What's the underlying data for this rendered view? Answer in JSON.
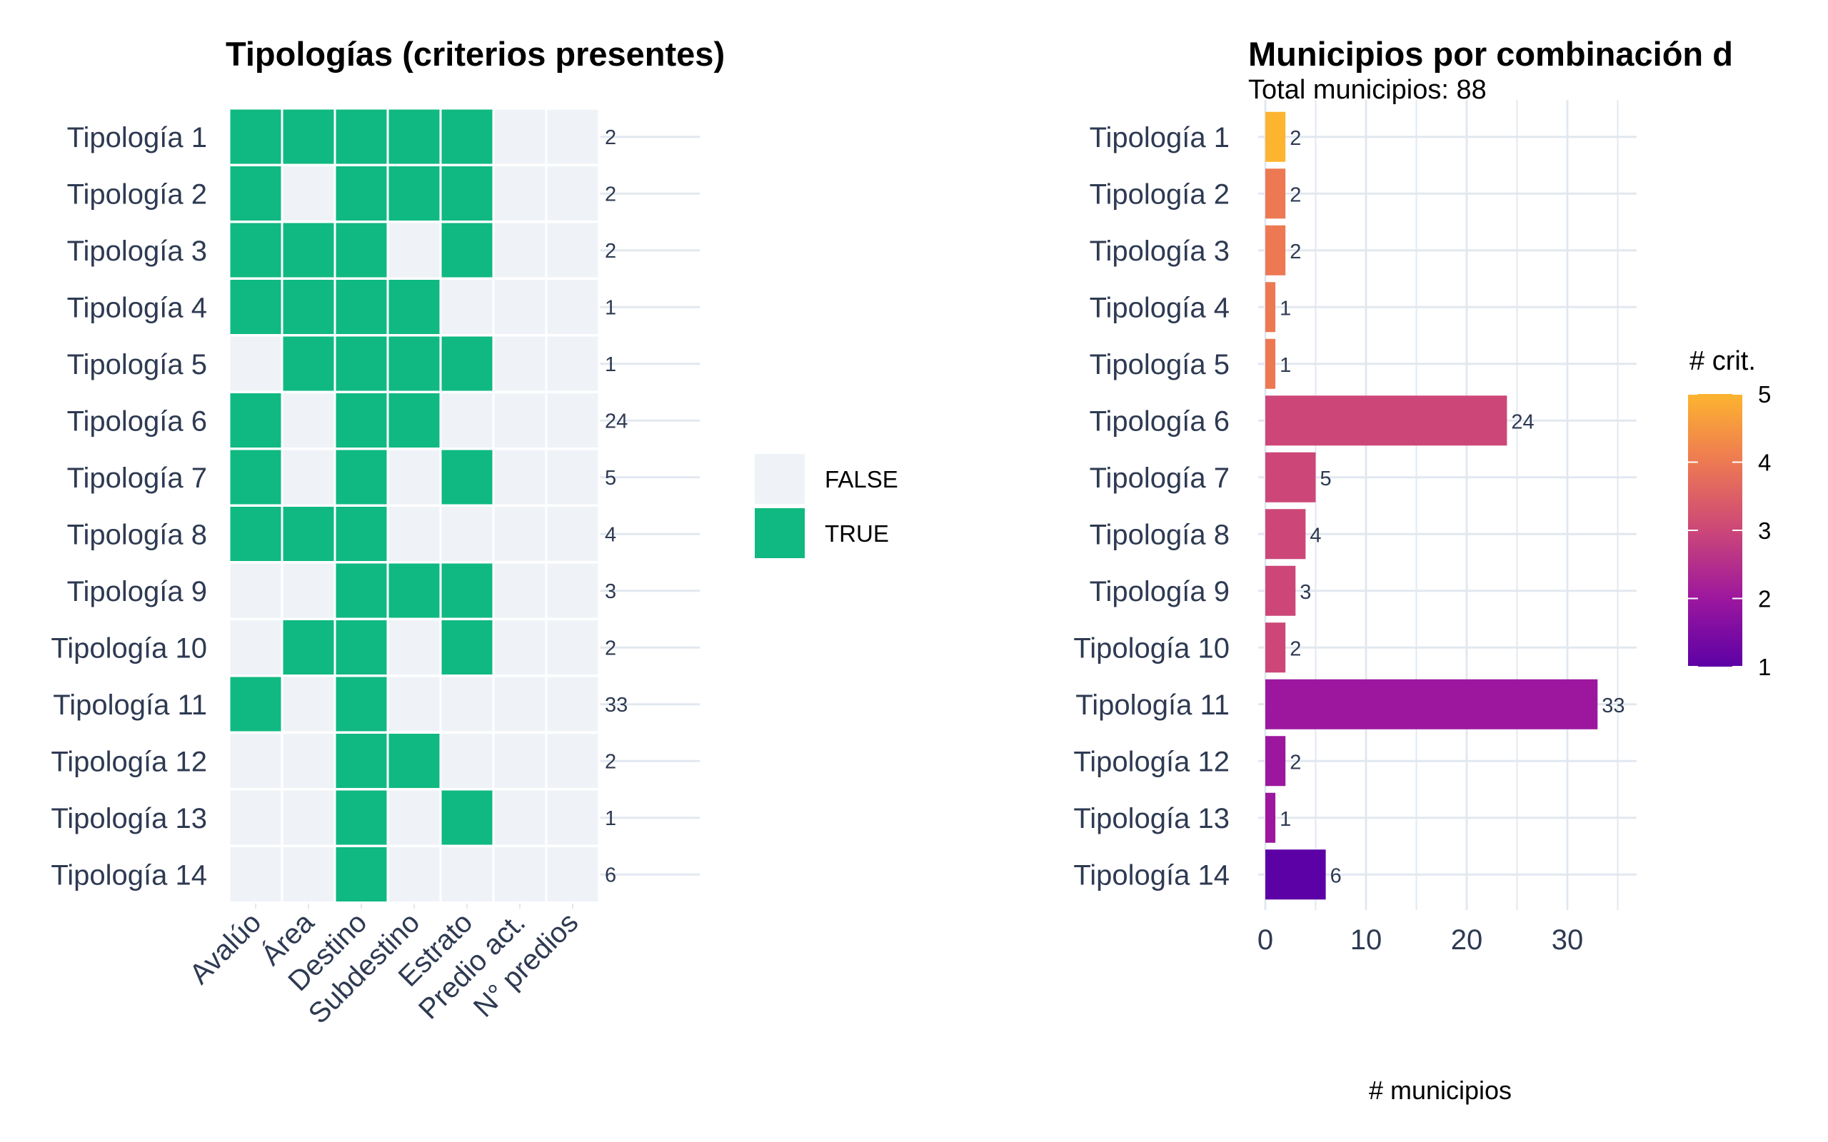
{
  "colors": {
    "true_fill": "#10b981",
    "false_fill": "#eff3f8",
    "grid": "#e2e8f0",
    "text": "#2e3a52"
  },
  "chart_data": [
    {
      "type": "heatmap",
      "title": "Tipologías (criterios presentes)",
      "rows": [
        "Tipología 1",
        "Tipología 2",
        "Tipología 3",
        "Tipología 4",
        "Tipología 5",
        "Tipología 6",
        "Tipología 7",
        "Tipología 8",
        "Tipología 9",
        "Tipología 10",
        "Tipología 11",
        "Tipología 12",
        "Tipología 13",
        "Tipología 14"
      ],
      "columns": [
        "Avalúo",
        "Área",
        "Destino",
        "Subdestino",
        "Estrato",
        "Predio act.",
        "N° predios"
      ],
      "matrix": [
        [
          1,
          1,
          1,
          1,
          1,
          0,
          0
        ],
        [
          1,
          0,
          1,
          1,
          1,
          0,
          0
        ],
        [
          1,
          1,
          1,
          0,
          1,
          0,
          0
        ],
        [
          1,
          1,
          1,
          1,
          0,
          0,
          0
        ],
        [
          0,
          1,
          1,
          1,
          1,
          0,
          0
        ],
        [
          1,
          0,
          1,
          1,
          0,
          0,
          0
        ],
        [
          1,
          0,
          1,
          0,
          1,
          0,
          0
        ],
        [
          1,
          1,
          1,
          0,
          0,
          0,
          0
        ],
        [
          0,
          0,
          1,
          1,
          1,
          0,
          0
        ],
        [
          0,
          1,
          1,
          0,
          1,
          0,
          0
        ],
        [
          1,
          0,
          1,
          0,
          0,
          0,
          0
        ],
        [
          0,
          0,
          1,
          1,
          0,
          0,
          0
        ],
        [
          0,
          0,
          1,
          0,
          1,
          0,
          0
        ],
        [
          0,
          0,
          1,
          0,
          0,
          0,
          0
        ]
      ],
      "counts": [
        2,
        2,
        2,
        1,
        1,
        24,
        5,
        4,
        3,
        2,
        33,
        2,
        1,
        6
      ],
      "legend": {
        "placement": "right",
        "entries": [
          {
            "label": "FALSE",
            "color": "#eff3f8"
          },
          {
            "label": "TRUE",
            "color": "#10b981"
          }
        ]
      }
    },
    {
      "type": "bar",
      "orientation": "horizontal",
      "title": "Municipios por combinación d",
      "subtitle": "Total municipios: 88",
      "categories": [
        "Tipología 1",
        "Tipología 2",
        "Tipología 3",
        "Tipología 4",
        "Tipología 5",
        "Tipología 6",
        "Tipología 7",
        "Tipología 8",
        "Tipología 9",
        "Tipología 10",
        "Tipología 11",
        "Tipología 12",
        "Tipología 13",
        "Tipología 14"
      ],
      "values": [
        2,
        2,
        2,
        1,
        1,
        24,
        5,
        4,
        3,
        2,
        33,
        2,
        1,
        6
      ],
      "n_criterios": [
        5,
        4,
        4,
        4,
        4,
        3,
        3,
        3,
        3,
        3,
        2,
        2,
        2,
        1
      ],
      "xlabel": "# municipios",
      "ylabel": "",
      "xlim": [
        0,
        37
      ],
      "xticks": [
        0,
        10,
        20,
        30
      ],
      "grid": true,
      "colorbar": {
        "title": "# crit.",
        "range": [
          1,
          5
        ],
        "ticks": [
          1,
          2,
          3,
          4,
          5
        ],
        "placement": "right",
        "stops": [
          "#5c01a6",
          "#9c179e",
          "#cc4778",
          "#ed7953",
          "#fdb42f"
        ]
      }
    }
  ]
}
